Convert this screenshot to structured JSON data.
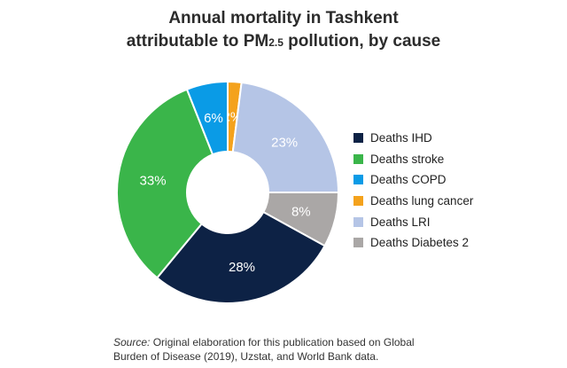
{
  "title": {
    "line1": "Annual mortality in Tashkent",
    "line2_pre": "attributable to PM",
    "line2_sub": "2.5",
    "line2_post": " pollution, by cause"
  },
  "chart_data": {
    "type": "pie",
    "donut": true,
    "categories": [
      "Deaths IHD",
      "Deaths stroke",
      "Deaths COPD",
      "Deaths lung cancer",
      "Deaths LRI",
      "Deaths Diabetes 2"
    ],
    "values": [
      28,
      33,
      6,
      2,
      23,
      8
    ],
    "labels": [
      "28%",
      "33%",
      "6%",
      "2%",
      "23%",
      "8%"
    ],
    "colors": [
      "#0d2245",
      "#3ab54a",
      "#0a9be6",
      "#f4a21c",
      "#b5c5e6",
      "#aaa7a6"
    ],
    "start_order": [
      "Deaths lung cancer",
      "Deaths LRI",
      "Deaths Diabetes 2",
      "Deaths IHD",
      "Deaths stroke",
      "Deaths COPD"
    ],
    "legend_position": "right"
  },
  "source": {
    "label": "Source:",
    "text": " Original elaboration for this publication based on Global",
    "line2": "Burden of Disease (2019), Uzstat, and World Bank data."
  }
}
